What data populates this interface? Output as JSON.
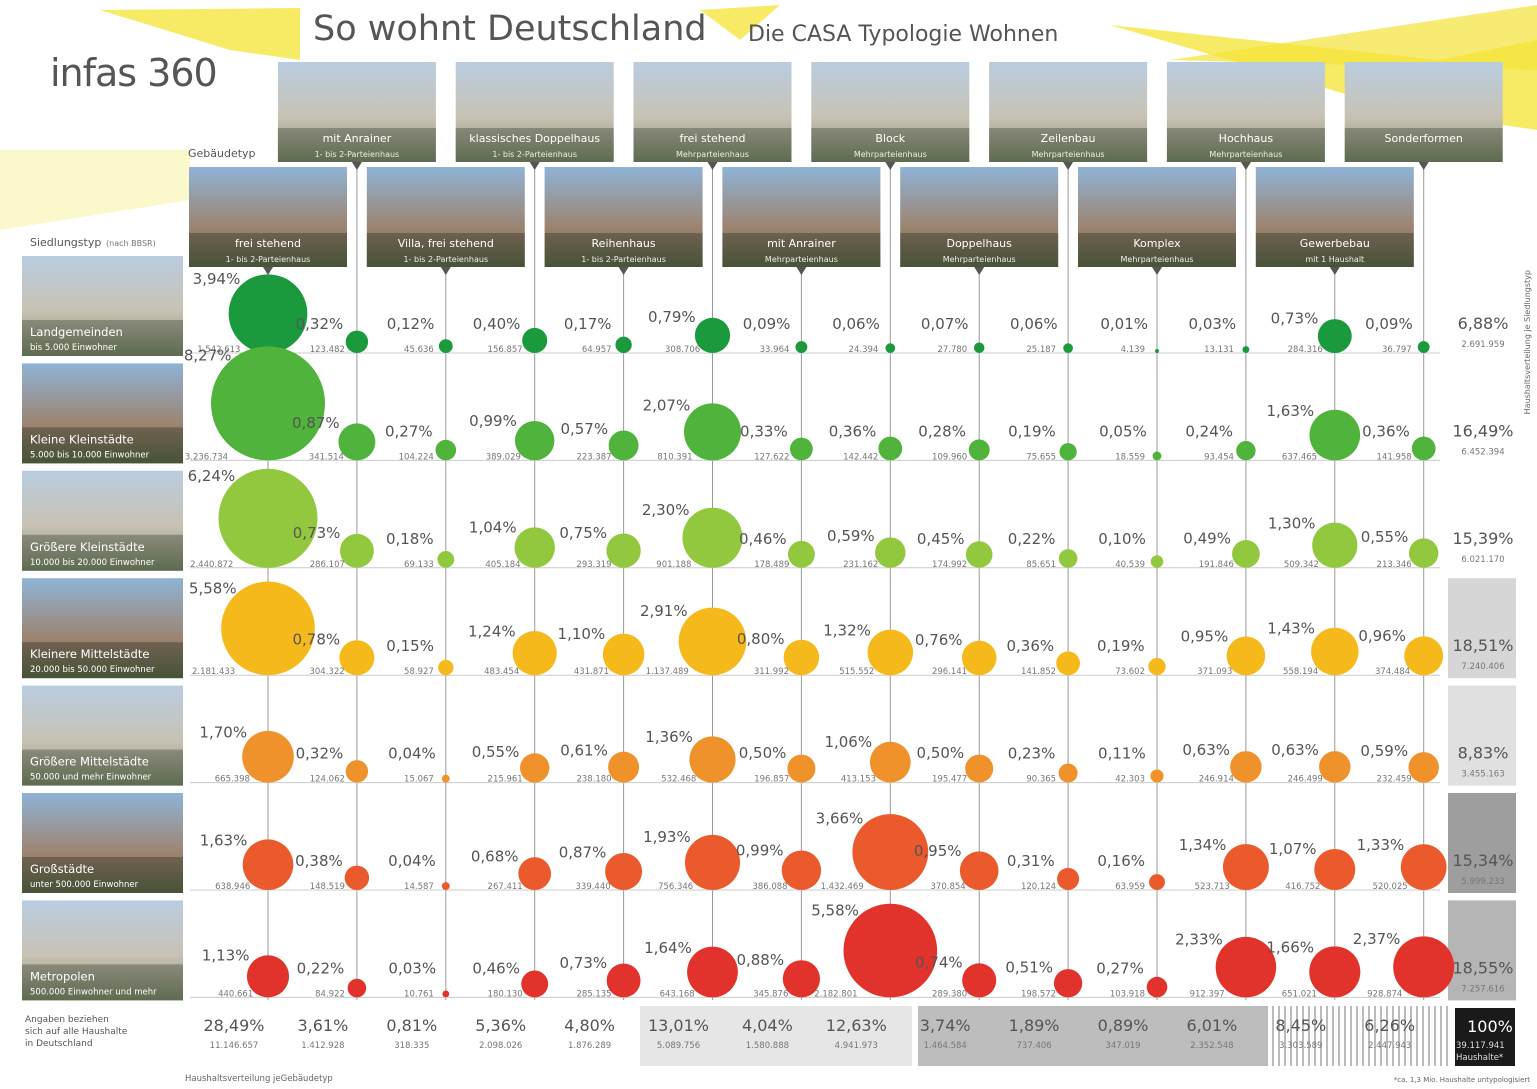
{
  "chart_data": {
    "type": "bubble-matrix",
    "title": "So wohnt Deutschland",
    "subtitle": "Die CASA Typologie Wohnen",
    "logo": "infas 360",
    "x_label": "Gebäudetyp",
    "y_label": "Siedlungstyp",
    "y_label_note": "(nach BBSR)",
    "categories": [
      "frei stehend",
      "mit Anrainer",
      "Villa, frei stehend",
      "klassisches Doppelhaus",
      "Reihenhaus",
      "frei stehend",
      "mit Anrainer",
      "Block",
      "Doppelhaus",
      "Zeilenbau",
      "Komplex",
      "Hochhaus",
      "Gewerbebau",
      "Sonderformen"
    ],
    "category_notes": [
      "1- bis 2-Parteienhaus",
      "1- bis 2-Parteienhaus",
      "1- bis 2-Parteienhaus",
      "1- bis 2-Parteienhaus",
      "1- bis 2-Parteienhaus",
      "Mehrparteienhaus",
      "Mehrparteienhaus",
      "Mehrparteienhaus",
      "Mehrparteienhaus",
      "Mehrparteienhaus",
      "Mehrparteienhaus",
      "Mehrparteienhaus",
      "mit 1 Haushalt",
      null
    ],
    "series": [
      {
        "name": "Landgemeinden",
        "note": "bis 5.000 Einwohner",
        "color": "#1a9a3c",
        "values": [
          3.94,
          0.32,
          0.12,
          0.4,
          0.17,
          0.79,
          0.09,
          0.06,
          0.07,
          0.06,
          0.01,
          0.03,
          0.73,
          0.09
        ],
        "value_labels": [
          "3,94%",
          "0,32%",
          "0,12%",
          "0,40%",
          "0,17%",
          "0,79%",
          "0,09%",
          "0,06%",
          "0,07%",
          "0,06%",
          "0,01%",
          "0,03%",
          "0,73%",
          "0,09%"
        ],
        "count_labels": [
          "1.542.613",
          "123.482",
          "45.636",
          "156.857",
          "64.957",
          "308.706",
          "33.964",
          "24.394",
          "27.780",
          "25.187",
          "4.139",
          "13.131",
          "284.316",
          "36.797"
        ],
        "total_label": "6,88%",
        "total_count_label": "2.691.959"
      },
      {
        "name": "Kleine Kleinstädte",
        "note": "5.000 bis 10.000 Einwohner",
        "color": "#4fb33c",
        "values": [
          8.27,
          0.87,
          0.27,
          0.99,
          0.57,
          2.07,
          0.33,
          0.36,
          0.28,
          0.19,
          0.05,
          0.24,
          1.63,
          0.36
        ],
        "value_labels": [
          "8,27%",
          "0,87%",
          "0,27%",
          "0,99%",
          "0,57%",
          "2,07%",
          "0,33%",
          "0,36%",
          "0,28%",
          "0,19%",
          "0,05%",
          "0,24%",
          "1,63%",
          "0,36%"
        ],
        "count_labels": [
          "3.236.734",
          "341.514",
          "104.224",
          "389.029",
          "223.387",
          "810.391",
          "127.622",
          "142.442",
          "109.960",
          "75.655",
          "18.559",
          "93.454",
          "637.465",
          "141.958"
        ],
        "total_label": "16,49%",
        "total_count_label": "6.452.394"
      },
      {
        "name": "Größere Kleinstädte",
        "note": "10.000 bis 20.000 Einwohner",
        "color": "#92c83e",
        "values": [
          6.24,
          0.73,
          0.18,
          1.04,
          0.75,
          2.3,
          0.46,
          0.59,
          0.45,
          0.22,
          0.1,
          0.49,
          1.3,
          0.55
        ],
        "value_labels": [
          "6,24%",
          "0,73%",
          "0,18%",
          "1,04%",
          "0,75%",
          "2,30%",
          "0,46%",
          "0,59%",
          "0,45%",
          "0,22%",
          "0,10%",
          "0,49%",
          "1,30%",
          "0,55%"
        ],
        "count_labels": [
          "2.440.872",
          "286.107",
          "69.133",
          "405.184",
          "293.319",
          "901.188",
          "178.489",
          "231.162",
          "174.992",
          "85.651",
          "40.539",
          "191.846",
          "509.342",
          "213.346"
        ],
        "total_label": "15,39%",
        "total_count_label": "6.021.170"
      },
      {
        "name": "Kleinere Mittelstädte",
        "note": "20.000 bis 50.000 Einwohner",
        "color": "#f6b91c",
        "values": [
          5.58,
          0.78,
          0.15,
          1.24,
          1.1,
          2.91,
          0.8,
          1.32,
          0.76,
          0.36,
          0.19,
          0.95,
          1.43,
          0.96
        ],
        "value_labels": [
          "5,58%",
          "0,78%",
          "0,15%",
          "1,24%",
          "1,10%",
          "2,91%",
          "0,80%",
          "1,32%",
          "0,76%",
          "0,36%",
          "0,19%",
          "0,95%",
          "1,43%",
          "0,96%"
        ],
        "count_labels": [
          "2.181.433",
          "304.322",
          "58.927",
          "483.454",
          "431.871",
          "1.137.489",
          "311.992",
          "515.552",
          "296.141",
          "141.852",
          "73.602",
          "371.093",
          "558.194",
          "374.484"
        ],
        "total_label": "18,51%",
        "total_count_label": "7.240.406"
      },
      {
        "name": "Größere Mittelstädte",
        "note": "50.000 und mehr Einwohner",
        "color": "#f0922b",
        "values": [
          1.7,
          0.32,
          0.04,
          0.55,
          0.61,
          1.36,
          0.5,
          1.06,
          0.5,
          0.23,
          0.11,
          0.63,
          0.63,
          0.59
        ],
        "value_labels": [
          "1,70%",
          "0,32%",
          "0,04%",
          "0,55%",
          "0,61%",
          "1,36%",
          "0,50%",
          "1,06%",
          "0,50%",
          "0,23%",
          "0,11%",
          "0,63%",
          "0,63%",
          "0,59%"
        ],
        "count_labels": [
          "665.398",
          "124.062",
          "15.067",
          "215.961",
          "238.180",
          "532.468",
          "196.857",
          "413.153",
          "195.477",
          "90.365",
          "42.303",
          "246.914",
          "246.499",
          "232.459"
        ],
        "total_label": "8,83%",
        "total_count_label": "3.455.163"
      },
      {
        "name": "Großstädte",
        "note": "unter 500.000 Einwohner",
        "color": "#ea5a2c",
        "values": [
          1.63,
          0.38,
          0.04,
          0.68,
          0.87,
          1.93,
          0.99,
          3.66,
          0.95,
          0.31,
          0.16,
          1.34,
          1.07,
          1.33
        ],
        "value_labels": [
          "1,63%",
          "0,38%",
          "0,04%",
          "0,68%",
          "0,87%",
          "1,93%",
          "0,99%",
          "3,66%",
          "0,95%",
          "0,31%",
          "0,16%",
          "1,34%",
          "1,07%",
          "1,33%"
        ],
        "count_labels": [
          "638.946",
          "148.519",
          "14.587",
          "267.411",
          "339.440",
          "756.346",
          "386.088",
          "1.432.469",
          "370.854",
          "120.124",
          "63.959",
          "523.713",
          "416.752",
          "520.025"
        ],
        "total_label": "15,34%",
        "total_count_label": "5.999.233"
      },
      {
        "name": "Metropolen",
        "note": "500.000 Einwohner und mehr",
        "color": "#e2322c",
        "values": [
          1.13,
          0.22,
          0.03,
          0.46,
          0.73,
          1.64,
          0.88,
          5.58,
          0.74,
          0.51,
          0.27,
          2.33,
          1.66,
          2.37
        ],
        "value_labels": [
          "1,13%",
          "0,22%",
          "0,03%",
          "0,46%",
          "0,73%",
          "1,64%",
          "0,88%",
          "5,58%",
          "0,74%",
          "0,51%",
          "0,27%",
          "2,33%",
          "1,66%",
          "2,37%"
        ],
        "count_labels": [
          "440.661",
          "84.922",
          "10.761",
          "180.130",
          "285.135",
          "643.168",
          "345.876",
          "2.182.801",
          "289.380",
          "198.572",
          "103.918",
          "912.397",
          "651.021",
          "928.874"
        ],
        "total_label": "18,55%",
        "total_count_label": "7.257.616"
      }
    ],
    "column_totals": {
      "value_labels": [
        "28,49%",
        "3,61%",
        "0,81%",
        "5,36%",
        "4,80%",
        "13,01%",
        "4,04%",
        "12,63%",
        "3,74%",
        "1,89%",
        "0,89%",
        "6,01%",
        "8,45%",
        "6,26%"
      ],
      "count_labels": [
        "11.146.657",
        "1.412.928",
        "318.335",
        "2.098.026",
        "1.876.289",
        "5.089.756",
        "1.580.888",
        "4.941.973",
        "1.464.584",
        "737.406",
        "347.019",
        "2.352.548",
        "3.303.589",
        "2.447.943"
      ]
    },
    "grand_total": {
      "label": "100%",
      "count_label": "39.117.941",
      "unit": "Haushalte*"
    },
    "notes": {
      "bottom_left": [
        "Angaben beziehen",
        "sich auf alle Haushalte",
        "in Deutschland"
      ],
      "bottom_axis": "Haushaltsverteilung jeGebäudetyp",
      "side_axis": "Haushaltsverteilung je Siedlungstyp",
      "footnote": "*ca. 1,3 Mio. Haushalte untypologisiert"
    }
  }
}
